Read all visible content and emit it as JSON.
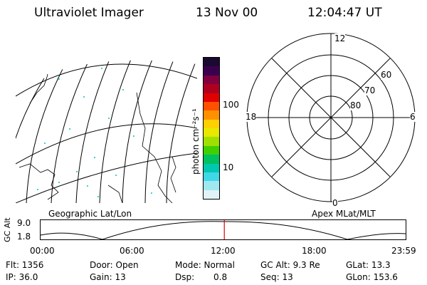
{
  "header": {
    "title": "Ultraviolet Imager",
    "date": "13 Nov 00",
    "time": "12:04:47 UT"
  },
  "colorbar": {
    "unit_label": "photon cm⁻²s⁻¹",
    "ticks": [
      "100",
      "10"
    ],
    "colors": [
      "#1a0a30",
      "#3a0050",
      "#800040",
      "#b00020",
      "#e00000",
      "#ff5000",
      "#ff9000",
      "#ffd000",
      "#e8e800",
      "#a0e000",
      "#40d000",
      "#00c060",
      "#00c8b0",
      "#40d8e8",
      "#a0e8f0",
      "#e0f4f8"
    ]
  },
  "geo_map": {
    "label": "Geographic Lat/Lon"
  },
  "polar_plot": {
    "label": "Apex MLat/MLT",
    "mlt_labels": {
      "top": "12",
      "bottom": "0",
      "left": "18",
      "right": "6"
    },
    "lat_labels": [
      "60",
      "70",
      "80"
    ]
  },
  "altitude_chart": {
    "ylabel": "GC Alt",
    "yticks": [
      "9.0",
      "1.8"
    ],
    "xticks": [
      "00:00",
      "06:00",
      "12:00",
      "18:00",
      "23:59"
    ],
    "current_time_marker_hour": 12.08,
    "marker_color": "#e00000"
  },
  "info": {
    "flt": "Flt: 1356",
    "ip": "IP: 36.0",
    "door": "Door: Open",
    "gain": "Gain: 13",
    "mode": "Mode: Normal",
    "dsp": "Dsp:",
    "dsp_value": "0.8",
    "gc_alt": "GC Alt: 9.3 Re",
    "seq": "Seq: 13",
    "glat": "GLat: 13.3",
    "glon": "GLon: 153.6"
  }
}
